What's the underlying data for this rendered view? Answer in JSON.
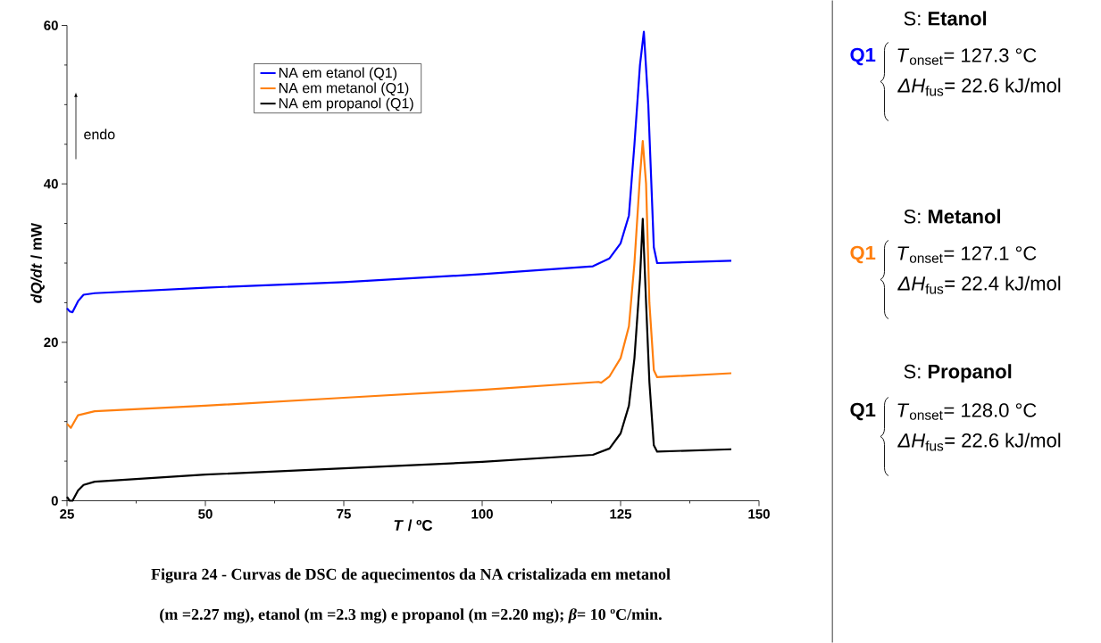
{
  "chart_data": {
    "type": "line",
    "xlabel": "*T* / ºC",
    "ylabel": "*dQ/dt*  / mW",
    "xlim": [
      25,
      150
    ],
    "xticks": [
      25,
      50,
      75,
      100,
      125,
      150
    ],
    "ylim": [
      0,
      60
    ],
    "yticks": [
      0,
      20,
      40,
      60
    ],
    "legend": "top left",
    "series": [
      {
        "name": "NA em etanol (Q1)",
        "color": "#0000ff",
        "x": [
          25,
          25.5,
          26,
          27,
          28,
          30,
          50,
          75,
          100,
          120,
          123,
          125,
          126.5,
          127.5,
          128.5,
          129.2,
          130,
          131,
          131.6,
          145
        ],
        "values": [
          24.3,
          23.9,
          23.8,
          25.2,
          26.0,
          26.2,
          26.9,
          27.6,
          28.6,
          29.6,
          30.6,
          32.5,
          36,
          45,
          55,
          59.2,
          50,
          32,
          30,
          30.3
        ]
      },
      {
        "name": "NA em metanol (Q1)",
        "color": "#ff7f0e",
        "x": [
          25,
          25.7,
          27,
          30,
          50,
          75,
          100,
          121,
          121.5,
          123,
          125,
          126.5,
          127.5,
          128.5,
          129,
          129.6,
          130.2,
          131,
          131.6,
          145
        ],
        "values": [
          9.7,
          9.2,
          10.8,
          11.3,
          12,
          13,
          14,
          15,
          14.9,
          15.7,
          18,
          22,
          30,
          41,
          45.4,
          40,
          25,
          16.5,
          15.6,
          16.1
        ]
      },
      {
        "name": "NA em propanol (Q1)",
        "color": "#000000",
        "x": [
          25,
          25.5,
          26,
          27,
          28,
          30,
          50,
          75,
          100,
          120,
          123,
          125,
          126.5,
          127.5,
          128.5,
          129,
          129.6,
          130.2,
          131,
          131.6,
          145
        ],
        "values": [
          0.5,
          0,
          0,
          1.3,
          2,
          2.4,
          3.3,
          4.1,
          4.9,
          5.8,
          6.6,
          8.5,
          12,
          18,
          28,
          35.6,
          25,
          15,
          7,
          6.2,
          6.5
        ]
      }
    ],
    "annotations": [
      "endo",
      "Figura 24 - Curvas de DSC de aquecimentos da NA cristalizada em metanol",
      "(m =2.27 mg), etanol (m =2.3 mg) e propanol (m =2.20 mg); *β*= 10 ºC/min.",
      "S: **Etanol**",
      "Q1",
      "*T*$_{onset}$= 127.3 °C",
      "*ΔH*$_{fus}$= 22.6 kJ/mol",
      "S: **Metanol**",
      "Q1",
      "*T*$_{onset}$= 127.1 °C",
      "*ΔH*$_{fus}$= 22.4  kJ/mol",
      "S: **Propanol**",
      "Q1",
      "*T*$_{onset}$= 128.0 °C",
      "*ΔH*$_{fus}$= 22.6 kJ/mol"
    ]
  }
}
